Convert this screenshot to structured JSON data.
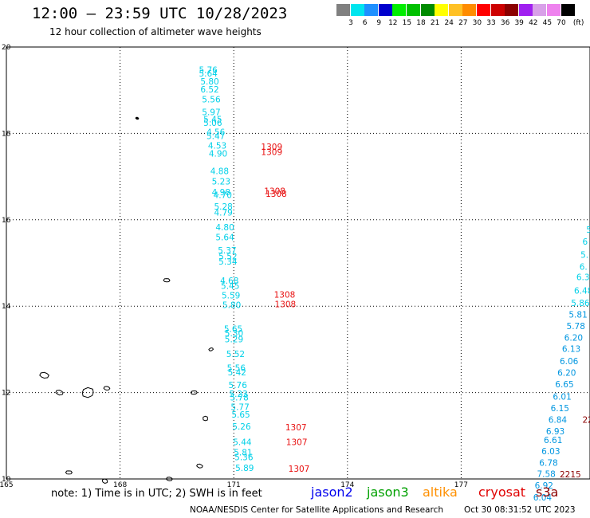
{
  "header": {
    "title": "12:00 — 23:59 UTC 10/28/2023",
    "subtitle": "12 hour collection of altimeter wave heights"
  },
  "colorscale": {
    "unit": "(ft)",
    "bins": [
      {
        "label": "3",
        "color": "#808080"
      },
      {
        "label": "6",
        "color": "#00e5ee"
      },
      {
        "label": "9",
        "color": "#1e90ff"
      },
      {
        "label": "12",
        "color": "#0000cd"
      },
      {
        "label": "15",
        "color": "#00ee00"
      },
      {
        "label": "18",
        "color": "#00c000"
      },
      {
        "label": "21",
        "color": "#008b00"
      },
      {
        "label": "24",
        "color": "#ffff00"
      },
      {
        "label": "27",
        "color": "#ffc125"
      },
      {
        "label": "30",
        "color": "#ff8c00"
      },
      {
        "label": "33",
        "color": "#ff0000"
      },
      {
        "label": "36",
        "color": "#cd0000"
      },
      {
        "label": "39",
        "color": "#8b0000"
      },
      {
        "label": "42",
        "color": "#a020f0"
      },
      {
        "label": "45",
        "color": "#d8a0e8"
      },
      {
        "label": "70",
        "color": "#ee82ee"
      },
      {
        "label": "",
        "color": "#000000"
      }
    ]
  },
  "map": {
    "lon_ticks": [
      "165",
      "168",
      "171",
      "174",
      "177"
    ],
    "lat_ticks": [
      "20",
      "18",
      "16",
      "14",
      "12",
      "10"
    ],
    "lon_range": [
      165,
      180.4
    ],
    "lat_range": [
      10,
      20
    ]
  },
  "tracks": {
    "jason3": {
      "color": "#00d0e8",
      "points": [
        {
          "lat": 19.4,
          "lon": 170.08,
          "v": "5.76"
        },
        {
          "lat": 19.32,
          "lon": 170.08,
          "v": "5.64"
        },
        {
          "lat": 19.13,
          "lon": 170.12,
          "v": "5.80"
        },
        {
          "lat": 18.95,
          "lon": 170.12,
          "v": "6.52"
        },
        {
          "lat": 18.72,
          "lon": 170.16,
          "v": "5.56"
        },
        {
          "lat": 18.42,
          "lon": 170.16,
          "v": "5.97"
        },
        {
          "lat": 18.26,
          "lon": 170.2,
          "v": "5.45"
        },
        {
          "lat": 18.17,
          "lon": 170.2,
          "v": "5.06"
        },
        {
          "lat": 17.96,
          "lon": 170.28,
          "v": "4.56"
        },
        {
          "lat": 17.87,
          "lon": 170.28,
          "v": "5.47"
        },
        {
          "lat": 17.65,
          "lon": 170.32,
          "v": "4.53"
        },
        {
          "lat": 17.46,
          "lon": 170.34,
          "v": "4.90"
        },
        {
          "lat": 17.06,
          "lon": 170.38,
          "v": "4.88"
        },
        {
          "lat": 16.82,
          "lon": 170.42,
          "v": "5.23"
        },
        {
          "lat": 16.57,
          "lon": 170.42,
          "v": "4.98"
        },
        {
          "lat": 16.5,
          "lon": 170.46,
          "v": "4.70"
        },
        {
          "lat": 16.24,
          "lon": 170.48,
          "v": "5.28"
        },
        {
          "lat": 16.1,
          "lon": 170.48,
          "v": "4.79"
        },
        {
          "lat": 15.76,
          "lon": 170.52,
          "v": "4.80"
        },
        {
          "lat": 15.53,
          "lon": 170.52,
          "v": "5.64"
        },
        {
          "lat": 15.22,
          "lon": 170.58,
          "v": "5.37"
        },
        {
          "lat": 15.08,
          "lon": 170.6,
          "v": "5.52"
        },
        {
          "lat": 14.96,
          "lon": 170.6,
          "v": "5.34"
        },
        {
          "lat": 14.52,
          "lon": 170.64,
          "v": "4.68"
        },
        {
          "lat": 14.4,
          "lon": 170.66,
          "v": "5.45"
        },
        {
          "lat": 14.18,
          "lon": 170.68,
          "v": "5.59"
        },
        {
          "lat": 13.96,
          "lon": 170.7,
          "v": "5.80"
        },
        {
          "lat": 13.4,
          "lon": 170.74,
          "v": "5.65"
        },
        {
          "lat": 13.3,
          "lon": 170.76,
          "v": "5.30"
        },
        {
          "lat": 13.16,
          "lon": 170.76,
          "v": "5.29"
        },
        {
          "lat": 12.82,
          "lon": 170.8,
          "v": "5.52"
        },
        {
          "lat": 12.5,
          "lon": 170.82,
          "v": "5.56"
        },
        {
          "lat": 12.4,
          "lon": 170.84,
          "v": "5.42"
        },
        {
          "lat": 12.1,
          "lon": 170.86,
          "v": "5.76"
        },
        {
          "lat": 11.9,
          "lon": 170.88,
          "v": "5.23"
        },
        {
          "lat": 11.82,
          "lon": 170.9,
          "v": "5.78"
        },
        {
          "lat": 11.6,
          "lon": 170.92,
          "v": "5.77"
        },
        {
          "lat": 11.42,
          "lon": 170.94,
          "v": "5.65"
        },
        {
          "lat": 11.14,
          "lon": 170.96,
          "v": "5.26"
        },
        {
          "lat": 10.78,
          "lon": 170.98,
          "v": "5.44"
        },
        {
          "lat": 10.54,
          "lon": 171.0,
          "v": "5.81"
        },
        {
          "lat": 10.43,
          "lon": 171.02,
          "v": "5.36"
        },
        {
          "lat": 10.18,
          "lon": 171.04,
          "v": "5.89"
        }
      ]
    },
    "jason3_east": {
      "color": "#00d0e8",
      "points": [
        {
          "lat": 15.7,
          "lon": 180.3,
          "v": "5"
        },
        {
          "lat": 15.42,
          "lon": 180.2,
          "v": "6"
        },
        {
          "lat": 15.12,
          "lon": 180.15,
          "v": "5."
        },
        {
          "lat": 14.84,
          "lon": 180.12,
          "v": "6."
        },
        {
          "lat": 14.6,
          "lon": 180.04,
          "v": "6.3"
        },
        {
          "lat": 14.29,
          "lon": 179.98,
          "v": "6.48"
        },
        {
          "lat": 14.0,
          "lon": 179.9,
          "v": "5.86"
        }
      ]
    },
    "jason2_east": {
      "color": "#0096e0",
      "points": [
        {
          "lat": 13.74,
          "lon": 179.84,
          "v": "5.81"
        },
        {
          "lat": 13.47,
          "lon": 179.78,
          "v": "5.78"
        },
        {
          "lat": 13.2,
          "lon": 179.72,
          "v": "6.20"
        },
        {
          "lat": 12.94,
          "lon": 179.66,
          "v": "6.13"
        },
        {
          "lat": 12.66,
          "lon": 179.6,
          "v": "6.06"
        },
        {
          "lat": 12.39,
          "lon": 179.54,
          "v": "6.20"
        },
        {
          "lat": 12.12,
          "lon": 179.48,
          "v": "6.65"
        },
        {
          "lat": 11.84,
          "lon": 179.42,
          "v": "6.01"
        },
        {
          "lat": 11.57,
          "lon": 179.36,
          "v": "6.15"
        },
        {
          "lat": 11.3,
          "lon": 179.3,
          "v": "6.84"
        },
        {
          "lat": 11.03,
          "lon": 179.24,
          "v": "6.93"
        },
        {
          "lat": 10.83,
          "lon": 179.18,
          "v": "6.61"
        },
        {
          "lat": 10.57,
          "lon": 179.12,
          "v": "6.03"
        },
        {
          "lat": 10.3,
          "lon": 179.06,
          "v": "6.78"
        },
        {
          "lat": 10.05,
          "lon": 179.0,
          "v": "7.58"
        },
        {
          "lat": 9.78,
          "lon": 178.94,
          "v": "6.92"
        },
        {
          "lat": 9.5,
          "lon": 178.9,
          "v": "6.04"
        }
      ]
    },
    "cryosat_red": {
      "color": "#e81010",
      "points": [
        {
          "lat": 17.62,
          "lon": 171.72,
          "v": "1309"
        },
        {
          "lat": 17.5,
          "lon": 171.72,
          "v": "1309"
        },
        {
          "lat": 16.6,
          "lon": 171.8,
          "v": "1308"
        },
        {
          "lat": 16.53,
          "lon": 171.84,
          "v": "1308"
        },
        {
          "lat": 14.2,
          "lon": 172.06,
          "v": "1308"
        },
        {
          "lat": 13.98,
          "lon": 172.08,
          "v": "1308"
        },
        {
          "lat": 11.13,
          "lon": 172.36,
          "v": "1307"
        },
        {
          "lat": 10.78,
          "lon": 172.38,
          "v": "1307"
        },
        {
          "lat": 10.17,
          "lon": 172.44,
          "v": "1307"
        }
      ]
    },
    "s3a_red": {
      "color": "#8b0000",
      "points": [
        {
          "lat": 11.3,
          "lon": 180.2,
          "v": "22"
        },
        {
          "lat": 10.04,
          "lon": 179.6,
          "v": "2215"
        }
      ]
    }
  },
  "islands": [
    {
      "lon": 168.45,
      "lat": 18.35,
      "r": 2
    },
    {
      "lon": 166.0,
      "lat": 12.4,
      "r": 6
    },
    {
      "lon": 166.4,
      "lat": 12.0,
      "r": 5
    },
    {
      "lon": 167.15,
      "lat": 12.0,
      "r": 9
    },
    {
      "lon": 167.65,
      "lat": 12.1,
      "r": 4
    },
    {
      "lon": 169.23,
      "lat": 14.6,
      "r": 4
    },
    {
      "lon": 170.4,
      "lat": 13.0,
      "r": 3
    },
    {
      "lon": 169.95,
      "lat": 12.0,
      "r": 4
    },
    {
      "lon": 170.25,
      "lat": 11.4,
      "r": 4
    },
    {
      "lon": 170.1,
      "lat": 10.3,
      "r": 4
    },
    {
      "lon": 166.65,
      "lat": 10.15,
      "r": 4
    },
    {
      "lon": 167.6,
      "lat": 9.95,
      "r": 4
    },
    {
      "lon": 169.3,
      "lat": 10.0,
      "r": 4
    }
  ],
  "note": "note:  1) Time is in UTC;  2) SWH is in feet",
  "legend": [
    {
      "name": "jason2",
      "color": "#0000ee"
    },
    {
      "name": "jason3",
      "color": "#00a000"
    },
    {
      "name": "altika",
      "color": "#ff9000"
    },
    {
      "name": "cryosat",
      "color": "#e00000"
    },
    {
      "name": "s3a",
      "color": "#8b0000"
    }
  ],
  "footer": {
    "source": "NOAA/NESDIS Center for Satellite Applications and Research",
    "timestamp": "Oct 30 08:31:52 UTC 2023"
  }
}
